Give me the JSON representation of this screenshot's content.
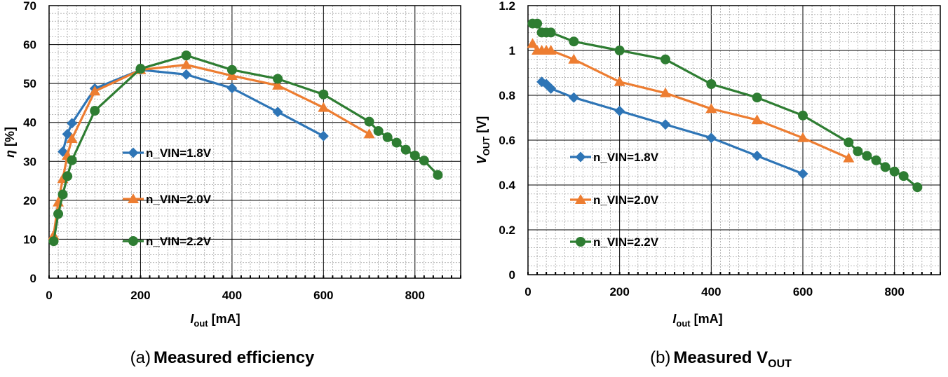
{
  "chart_data": [
    {
      "type": "line",
      "caption_prefix": "(a)",
      "caption": "Measured efficiency",
      "xlabel": {
        "main": "I",
        "sub": "out",
        "unit": " [mA]"
      },
      "ylabel": {
        "main": "η",
        "unit": " [%]"
      },
      "xlim": [
        0,
        900
      ],
      "ylim": [
        0,
        70
      ],
      "xticks": [
        0,
        200,
        400,
        600,
        800
      ],
      "yticks": [
        0,
        10,
        20,
        30,
        40,
        50,
        60,
        70
      ],
      "grid": true,
      "legend_position": "center-left",
      "series": [
        {
          "name": "n_VIN=1.8V",
          "color": "#2e75b6",
          "marker": "diamond",
          "x": [
            30,
            40,
            50,
            100,
            200,
            300,
            400,
            500,
            600
          ],
          "y": [
            32.5,
            37,
            39.8,
            48.7,
            53.5,
            52.3,
            48.8,
            42.7,
            36.5
          ]
        },
        {
          "name": "n_VIN=2.0V",
          "color": "#ed7d31",
          "marker": "triangle",
          "x": [
            10,
            20,
            30,
            40,
            50,
            100,
            200,
            300,
            400,
            500,
            600,
            700
          ],
          "y": [
            11,
            19.5,
            25.5,
            31.5,
            35.8,
            48,
            53.5,
            54.8,
            52,
            49.5,
            43.8,
            37
          ]
        },
        {
          "name": "n_VIN=2.2V",
          "color": "#2e7d32",
          "marker": "circle",
          "x": [
            10,
            20,
            30,
            40,
            50,
            100,
            200,
            300,
            400,
            500,
            600,
            700,
            720,
            740,
            760,
            780,
            800,
            820,
            850
          ],
          "y": [
            9.5,
            16.5,
            21.5,
            26.2,
            30.3,
            43,
            53.8,
            57.2,
            53.5,
            51.2,
            47.2,
            40.2,
            37.8,
            36.2,
            34.8,
            33,
            31.5,
            30.2,
            26.5
          ]
        }
      ]
    },
    {
      "type": "line",
      "caption_prefix": "(b)",
      "caption": "Measured V",
      "caption_sub": "OUT",
      "xlabel": {
        "main": "I",
        "sub": "out",
        "unit": " [mA]"
      },
      "ylabel": {
        "main": "V",
        "sub": "OUT",
        "unit": " [V]"
      },
      "xlim": [
        0,
        900
      ],
      "ylim": [
        0,
        1.2
      ],
      "xticks": [
        0,
        200,
        400,
        600,
        800
      ],
      "yticks": [
        0,
        0.2,
        0.4,
        0.6,
        0.8,
        1,
        1.2
      ],
      "ytick_labels": [
        "0",
        "0.2",
        "0.4",
        "0.6",
        "0.8",
        "1",
        "1.2"
      ],
      "grid": true,
      "legend_position": "center-left",
      "series": [
        {
          "name": "n_VIN=1.8V",
          "color": "#2e75b6",
          "marker": "diamond",
          "x": [
            30,
            40,
            50,
            100,
            200,
            300,
            400,
            500,
            600
          ],
          "y": [
            0.86,
            0.85,
            0.83,
            0.79,
            0.73,
            0.67,
            0.61,
            0.53,
            0.45
          ]
        },
        {
          "name": "n_VIN=2.0V",
          "color": "#ed7d31",
          "marker": "triangle",
          "x": [
            10,
            20,
            30,
            40,
            50,
            100,
            200,
            300,
            400,
            500,
            600,
            700
          ],
          "y": [
            1.03,
            1.0,
            1.0,
            1.0,
            1.0,
            0.96,
            0.86,
            0.81,
            0.74,
            0.69,
            0.61,
            0.52
          ]
        },
        {
          "name": "n_VIN=2.2V",
          "color": "#2e7d32",
          "marker": "circle",
          "x": [
            10,
            20,
            30,
            40,
            50,
            100,
            200,
            300,
            400,
            500,
            600,
            700,
            720,
            740,
            760,
            780,
            800,
            820,
            850
          ],
          "y": [
            1.12,
            1.12,
            1.08,
            1.08,
            1.08,
            1.04,
            1.0,
            0.96,
            0.85,
            0.79,
            0.71,
            0.59,
            0.55,
            0.53,
            0.51,
            0.48,
            0.46,
            0.44,
            0.39
          ]
        }
      ]
    }
  ]
}
